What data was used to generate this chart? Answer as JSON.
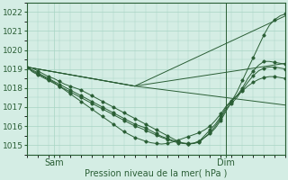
{
  "xlabel": "Pression niveau de la mer( hPa )",
  "ylim": [
    1014.5,
    1022.5
  ],
  "xlim": [
    0,
    48
  ],
  "yticks": [
    1015,
    1016,
    1017,
    1018,
    1019,
    1020,
    1021,
    1022
  ],
  "xtick_positions": [
    5,
    37
  ],
  "xtick_labels": [
    "Sam",
    "Dim"
  ],
  "vline_x": 37,
  "bg_color": "#d4ede4",
  "grid_color": "#a8d4c4",
  "line_color": "#2a5e35",
  "marker_color": "#2a5e35",
  "series_wavy": [
    {
      "x": [
        0,
        1,
        2,
        3,
        4,
        5,
        6,
        7,
        8,
        9,
        10,
        11,
        12,
        13,
        14,
        15,
        16,
        17,
        18,
        19,
        20,
        21,
        22,
        23,
        24,
        25,
        26,
        27,
        28,
        29,
        30,
        31,
        32,
        33,
        34,
        35,
        36,
        37,
        38,
        39,
        40,
        41,
        42,
        43,
        44,
        45,
        46,
        47,
        48
      ],
      "y": [
        1019.1,
        1019.05,
        1018.9,
        1018.75,
        1018.6,
        1018.5,
        1018.35,
        1018.2,
        1018.1,
        1018.0,
        1017.9,
        1017.75,
        1017.6,
        1017.45,
        1017.3,
        1017.15,
        1017.0,
        1016.85,
        1016.7,
        1016.55,
        1016.4,
        1016.25,
        1016.1,
        1015.95,
        1015.8,
        1015.65,
        1015.5,
        1015.35,
        1015.2,
        1015.1,
        1015.05,
        1015.1,
        1015.2,
        1015.4,
        1015.6,
        1015.9,
        1016.3,
        1016.8,
        1017.3,
        1017.8,
        1018.4,
        1019.0,
        1019.6,
        1020.2,
        1020.8,
        1021.3,
        1021.6,
        1021.8,
        1021.9
      ]
    },
    {
      "x": [
        0,
        1,
        2,
        3,
        4,
        5,
        6,
        7,
        8,
        9,
        10,
        11,
        12,
        13,
        14,
        15,
        16,
        17,
        18,
        19,
        20,
        21,
        22,
        23,
        24,
        25,
        26,
        27,
        28,
        29,
        30,
        31,
        32,
        33,
        34,
        35,
        36,
        37,
        38,
        39,
        40,
        41,
        42,
        43,
        44,
        45,
        46,
        47,
        48
      ],
      "y": [
        1019.1,
        1018.95,
        1018.8,
        1018.65,
        1018.5,
        1018.35,
        1018.2,
        1018.05,
        1017.9,
        1017.75,
        1017.6,
        1017.45,
        1017.3,
        1017.15,
        1017.0,
        1016.85,
        1016.7,
        1016.55,
        1016.4,
        1016.25,
        1016.1,
        1016.0,
        1015.9,
        1015.75,
        1015.6,
        1015.45,
        1015.35,
        1015.25,
        1015.15,
        1015.1,
        1015.08,
        1015.1,
        1015.2,
        1015.5,
        1015.8,
        1016.1,
        1016.5,
        1017.0,
        1017.3,
        1017.6,
        1018.0,
        1018.5,
        1018.9,
        1019.2,
        1019.4,
        1019.4,
        1019.35,
        1019.3,
        1019.25
      ]
    },
    {
      "x": [
        0,
        1,
        2,
        3,
        4,
        5,
        6,
        7,
        8,
        9,
        10,
        11,
        12,
        13,
        14,
        15,
        16,
        17,
        18,
        19,
        20,
        21,
        22,
        23,
        24,
        25,
        26,
        27,
        28,
        29,
        30,
        31,
        32,
        33,
        34,
        35,
        36,
        37,
        38,
        39,
        40,
        41,
        42,
        43,
        44,
        45,
        46,
        47,
        48
      ],
      "y": [
        1019.1,
        1018.85,
        1018.7,
        1018.55,
        1018.4,
        1018.25,
        1018.1,
        1017.95,
        1017.8,
        1017.65,
        1017.5,
        1017.35,
        1017.2,
        1017.05,
        1016.9,
        1016.75,
        1016.6,
        1016.45,
        1016.3,
        1016.15,
        1016.0,
        1015.9,
        1015.78,
        1015.65,
        1015.52,
        1015.4,
        1015.3,
        1015.2,
        1015.12,
        1015.08,
        1015.05,
        1015.08,
        1015.15,
        1015.4,
        1015.65,
        1016.0,
        1016.4,
        1016.9,
        1017.2,
        1017.5,
        1017.9,
        1018.3,
        1018.65,
        1018.9,
        1019.05,
        1019.1,
        1019.1,
        1019.05,
        1019.0
      ]
    },
    {
      "x": [
        0,
        1,
        2,
        3,
        4,
        5,
        6,
        7,
        8,
        9,
        10,
        11,
        12,
        13,
        14,
        15,
        16,
        17,
        18,
        19,
        20,
        21,
        22,
        23,
        24,
        25,
        26,
        27,
        28,
        29,
        30,
        31,
        32,
        33,
        34,
        35,
        36,
        37,
        38,
        39,
        40,
        41,
        42,
        43,
        44,
        45,
        46,
        47,
        48
      ],
      "y": [
        1019.1,
        1018.9,
        1018.75,
        1018.6,
        1018.45,
        1018.3,
        1018.1,
        1017.9,
        1017.7,
        1017.5,
        1017.3,
        1017.1,
        1016.9,
        1016.7,
        1016.5,
        1016.3,
        1016.1,
        1015.9,
        1015.7,
        1015.55,
        1015.4,
        1015.3,
        1015.2,
        1015.12,
        1015.08,
        1015.05,
        1015.08,
        1015.15,
        1015.25,
        1015.35,
        1015.45,
        1015.55,
        1015.65,
        1015.8,
        1016.0,
        1016.3,
        1016.65,
        1017.05,
        1017.35,
        1017.6,
        1017.85,
        1018.1,
        1018.3,
        1018.45,
        1018.55,
        1018.6,
        1018.6,
        1018.55,
        1018.5
      ]
    }
  ],
  "series_fan": [
    {
      "x": [
        0,
        20,
        48
      ],
      "y": [
        1019.1,
        1018.1,
        1021.8
      ]
    },
    {
      "x": [
        0,
        20,
        48
      ],
      "y": [
        1019.1,
        1018.1,
        1019.3
      ]
    },
    {
      "x": [
        0,
        20,
        48
      ],
      "y": [
        1019.1,
        1018.1,
        1017.1
      ]
    }
  ]
}
